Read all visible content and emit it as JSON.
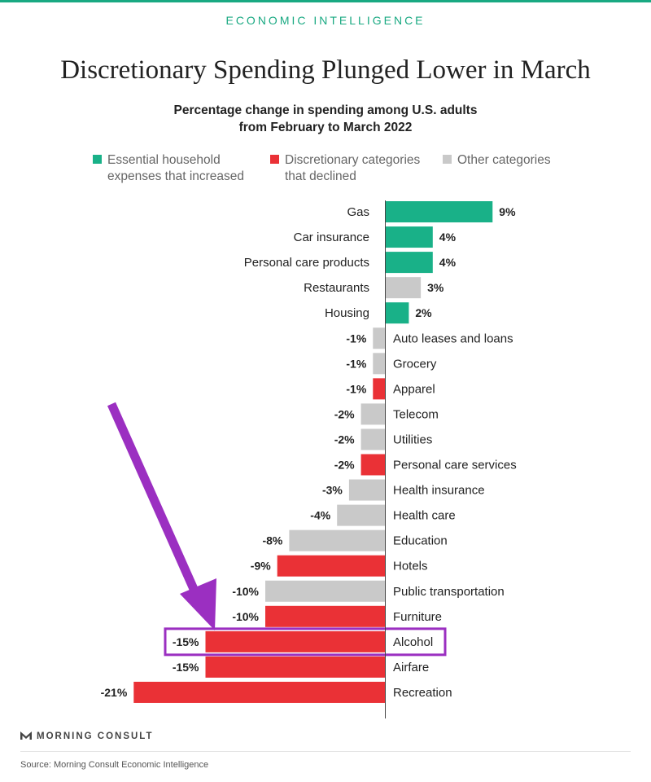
{
  "header": {
    "kicker": "ECONOMIC INTELLIGENCE",
    "title": "Discretionary Spending Plunged Lower in March",
    "subtitle_line1": "Percentage change in spending among U.S. adults",
    "subtitle_line2": "from February to March 2022"
  },
  "legend": [
    {
      "label_line1": "Essential household",
      "label_line2": "expenses that increased",
      "color": "#19b188"
    },
    {
      "label_line1": "Discretionary categories",
      "label_line2": "that declined",
      "color": "#ea3136"
    },
    {
      "label_line1": "Other categories",
      "label_line2": "",
      "color": "#c9c9c9"
    }
  ],
  "chart_data": {
    "type": "bar",
    "orientation": "horizontal",
    "title": "Discretionary Spending Plunged Lower in March",
    "subtitle": "Percentage change in spending among U.S. adults from February to March 2022",
    "unit": "%",
    "xlim": [
      -21,
      9
    ],
    "highlight": "Alcohol",
    "colors": {
      "essential": "#19b188",
      "discretionary": "#ea3136",
      "other": "#c9c9c9",
      "highlight": "#9b2fc1"
    },
    "bars": [
      {
        "category": "Gas",
        "value": 9,
        "group": "essential"
      },
      {
        "category": "Car insurance",
        "value": 4,
        "group": "essential"
      },
      {
        "category": "Personal care products",
        "value": 4,
        "group": "essential"
      },
      {
        "category": "Restaurants",
        "value": 3,
        "group": "other"
      },
      {
        "category": "Housing",
        "value": 2,
        "group": "essential"
      },
      {
        "category": "Auto leases and loans",
        "value": -1,
        "group": "other"
      },
      {
        "category": "Grocery",
        "value": -1,
        "group": "other"
      },
      {
        "category": "Apparel",
        "value": -1,
        "group": "discretionary"
      },
      {
        "category": "Telecom",
        "value": -2,
        "group": "other"
      },
      {
        "category": "Utilities",
        "value": -2,
        "group": "other"
      },
      {
        "category": "Personal care services",
        "value": -2,
        "group": "discretionary"
      },
      {
        "category": "Health insurance",
        "value": -3,
        "group": "other"
      },
      {
        "category": "Health care",
        "value": -4,
        "group": "other"
      },
      {
        "category": "Education",
        "value": -8,
        "group": "other"
      },
      {
        "category": "Hotels",
        "value": -9,
        "group": "discretionary"
      },
      {
        "category": "Public transportation",
        "value": -10,
        "group": "other"
      },
      {
        "category": "Furniture",
        "value": -10,
        "group": "discretionary"
      },
      {
        "category": "Alcohol",
        "value": -15,
        "group": "discretionary"
      },
      {
        "category": "Airfare",
        "value": -15,
        "group": "discretionary"
      },
      {
        "category": "Recreation",
        "value": -21,
        "group": "discretionary"
      }
    ]
  },
  "footer": {
    "brand": "MORNING CONSULT",
    "source": "Source: Morning Consult Economic Intelligence"
  }
}
